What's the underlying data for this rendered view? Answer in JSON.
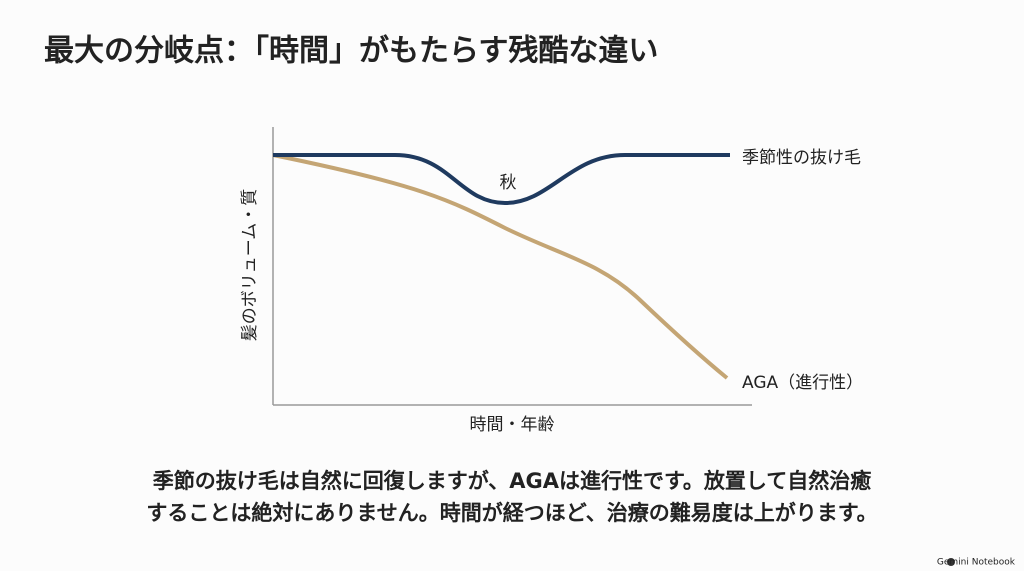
{
  "header": {
    "title": "最大の分岐点：「時間」がもたらす残酷な違い"
  },
  "diagram": {
    "y_axis_label": "髪のボリューム・質",
    "x_axis_label": "時間・年齢",
    "curves": [
      {
        "label": "季節性の抜け毛"
      },
      {
        "label": "AGA（進行性）"
      }
    ],
    "annotation": "秋"
  },
  "body": {
    "lines": [
      "季節の抜け毛は自然に回復しますが、AGAは進行性です。放置して自然治癒",
      "することは絶対にありません。時間が経つほど、治療の難易度は上がります。"
    ]
  },
  "footer": {
    "brand": "Gemini Notebook"
  }
}
